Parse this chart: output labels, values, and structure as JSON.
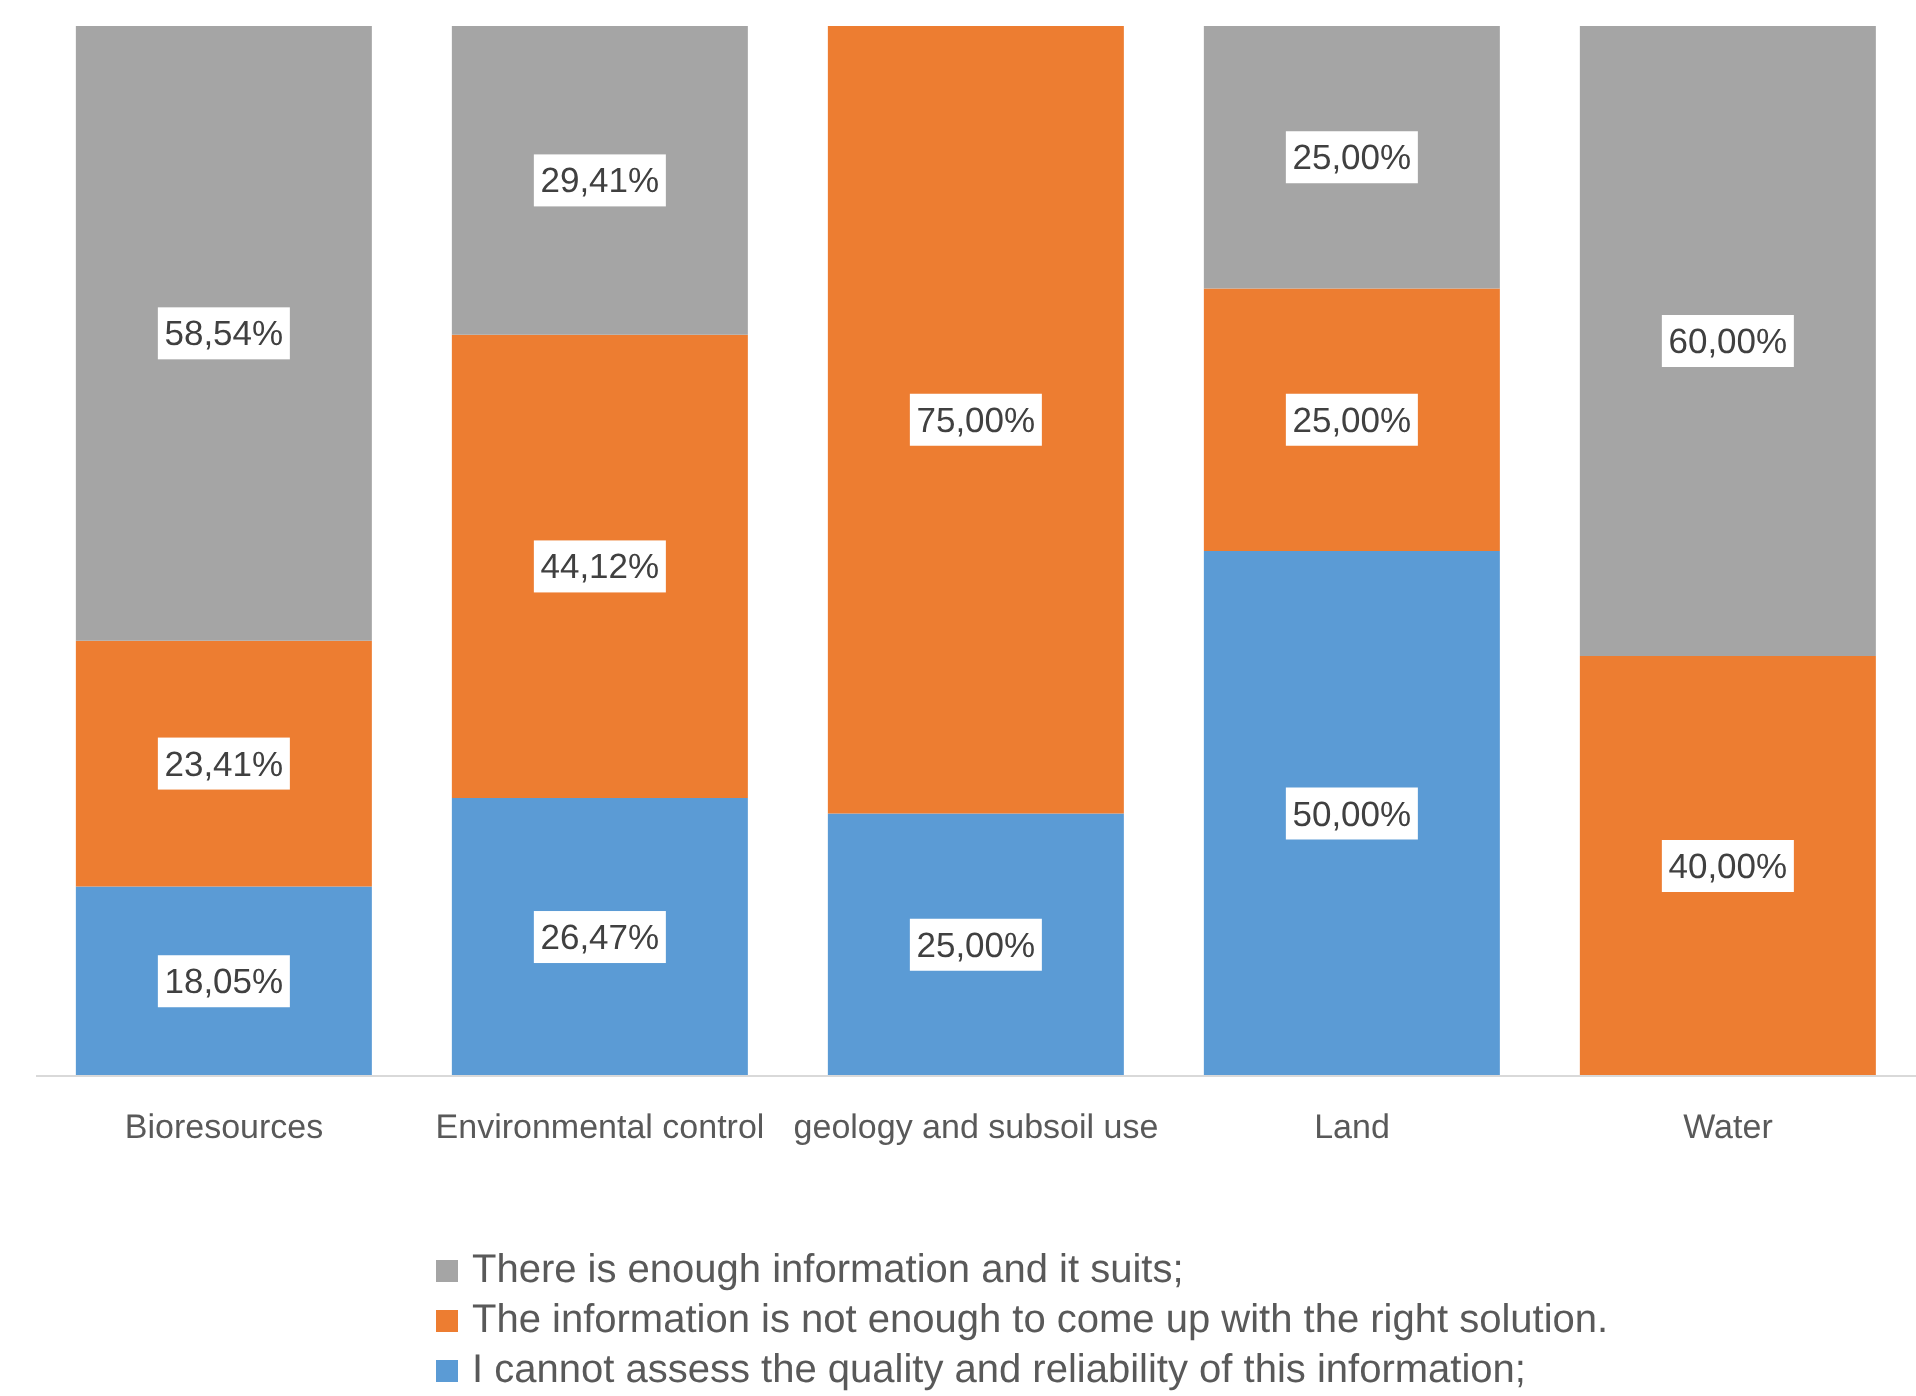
{
  "chart_data": {
    "type": "bar",
    "stacked": true,
    "categories": [
      "Bioresources",
      "Environmental control",
      "geology and subsoil use",
      "Land",
      "Water"
    ],
    "series": [
      {
        "name": "I cannot assess the quality and reliability of this information;",
        "color": "#5b9bd5",
        "values": [
          18.05,
          26.47,
          25,
          50,
          null
        ],
        "value_labels": [
          "18,05%",
          "26,47%",
          "25,00%",
          "50,00%",
          null
        ]
      },
      {
        "name": "The information is not enough to come up with the right solution.",
        "color": "#ed7d31",
        "values": [
          23.41,
          44.12,
          75,
          25,
          40
        ],
        "value_labels": [
          "23,41%",
          "44,12%",
          "75,00%",
          "25,00%",
          "40,00%"
        ]
      },
      {
        "name": "There is enough information and it suits;",
        "color": "#a5a5a5",
        "values": [
          58.54,
          29.41,
          null,
          25,
          60
        ],
        "value_labels": [
          "58,54%",
          "29,41%",
          null,
          "25,00%",
          "60,00%"
        ]
      }
    ],
    "legend": "bottom",
    "grid": false
  }
}
